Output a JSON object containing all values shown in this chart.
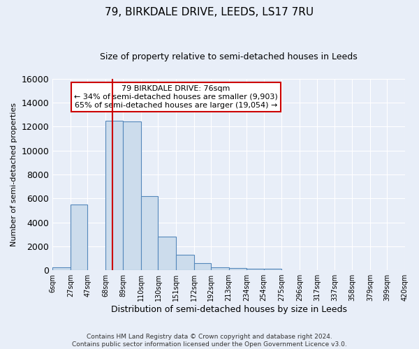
{
  "title1": "79, BIRKDALE DRIVE, LEEDS, LS17 7RU",
  "title2": "Size of property relative to semi-detached houses in Leeds",
  "xlabel": "Distribution of semi-detached houses by size in Leeds",
  "ylabel": "Number of semi-detached properties",
  "footnote": "Contains HM Land Registry data © Crown copyright and database right 2024.\nContains public sector information licensed under the Open Government Licence v3.0.",
  "bin_edges": [
    6,
    27,
    47,
    68,
    89,
    110,
    130,
    151,
    172,
    192,
    213,
    234,
    254,
    275,
    296,
    317,
    337,
    358,
    379,
    399,
    420
  ],
  "bar_heights": [
    250,
    5500,
    0,
    12500,
    12400,
    6200,
    2800,
    1300,
    600,
    250,
    200,
    150,
    100,
    0,
    0,
    0,
    0,
    0,
    0,
    0
  ],
  "bar_color": "#ccdcec",
  "bar_edge_color": "#5588bb",
  "property_size": 76,
  "red_line_color": "#cc0000",
  "annotation_line1": "79 BIRKDALE DRIVE: 76sqm",
  "annotation_line2": "← 34% of semi-detached houses are smaller (9,903)",
  "annotation_line3": "65% of semi-detached houses are larger (19,054) →",
  "annotation_box_facecolor": "#ffffff",
  "annotation_box_edgecolor": "#cc0000",
  "bg_color": "#e8eef8",
  "grid_color": "#ffffff",
  "ylim": [
    0,
    16000
  ],
  "yticks": [
    0,
    2000,
    4000,
    6000,
    8000,
    10000,
    12000,
    14000,
    16000
  ],
  "title1_fontsize": 11,
  "title2_fontsize": 9,
  "ylabel_fontsize": 8,
  "xlabel_fontsize": 9,
  "tick_fontsize": 7,
  "annot_fontsize": 8,
  "footnote_fontsize": 6.5
}
